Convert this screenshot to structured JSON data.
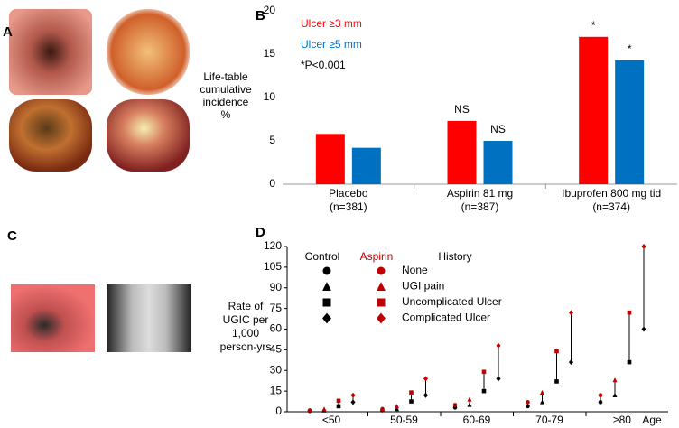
{
  "panel_labels": [
    "A",
    "B",
    "C",
    "D"
  ],
  "chart_data": [
    {
      "type": "bar",
      "ylabel": [
        "Life-table",
        "cumulative",
        "incidence",
        "%"
      ],
      "categories": [
        "Placebo",
        "Aspirin 81 mg",
        "Ibuprofen 800 mg tid"
      ],
      "category_sublabels": [
        "(n=381)",
        "(n=387)",
        "(n=374)"
      ],
      "series": [
        {
          "name": "Ulcer ≥3 mm",
          "color": "#ff0000",
          "values": [
            5.8,
            7.3,
            17.0
          ],
          "annotations": [
            null,
            "NS",
            "*"
          ]
        },
        {
          "name": "Ulcer ≥5 mm",
          "color": "#0070c0",
          "values": [
            4.2,
            5.0,
            14.3
          ],
          "annotations": [
            null,
            "NS",
            "*"
          ]
        }
      ],
      "note": "*P<0.001",
      "ylim": [
        0,
        20
      ],
      "yticks": [
        0,
        5,
        10,
        15,
        20
      ],
      "grid": false
    },
    {
      "type": "dot",
      "ylabel": [
        "Rate of",
        "UGIC per",
        "1,000",
        "person-yrs"
      ],
      "xlabel": "Age",
      "categories": [
        "<50",
        "50-59",
        "60-69",
        "70-79",
        "≥80"
      ],
      "legend_title": "History",
      "history": [
        "None",
        "UGI pain",
        "Uncomplicated Ulcer",
        "Complicated Ulcer"
      ],
      "markers": [
        "circle",
        "triangle",
        "square",
        "diamond"
      ],
      "series": [
        {
          "name": "Control",
          "color": "#000000",
          "values": [
            [
              0.5,
              1,
              3,
              4,
              7
            ],
            [
              1,
              2,
              5,
              7,
              12
            ],
            [
              4,
              7.5,
              15,
              22,
              36
            ],
            [
              7,
              12,
              24,
              36,
              60
            ]
          ]
        },
        {
          "name": "Aspirin",
          "color": "#c00000",
          "values": [
            [
              1,
              2,
              5,
              7,
              12
            ],
            [
              2,
              4,
              9,
              14,
              23
            ],
            [
              8,
              14,
              29,
              44,
              72
            ],
            [
              12,
              24,
              48,
              72,
              120
            ]
          ]
        }
      ],
      "ylim": [
        0,
        120
      ],
      "yticks": [
        0,
        15,
        30,
        45,
        60,
        75,
        90,
        105,
        120
      ],
      "grid": false
    }
  ]
}
